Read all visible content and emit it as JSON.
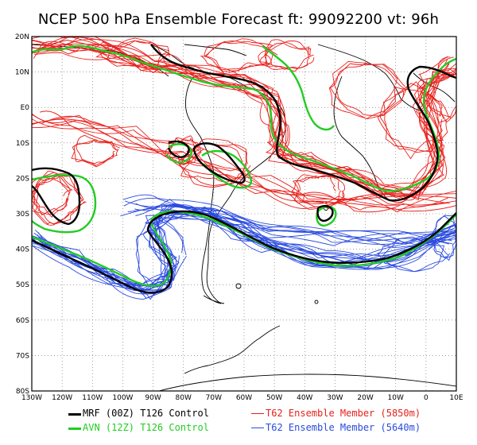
{
  "title": "NCEP 500 hPa Ensemble Forecast  ft: 99092200 vt: 96h",
  "lat_labels": [
    "20N",
    "10N",
    "E0",
    "10S",
    "20S",
    "30S",
    "40S",
    "50S",
    "60S",
    "70S",
    "80S"
  ],
  "lon_labels": [
    "130W",
    "120W",
    "110W",
    "100W",
    "90W",
    "80W",
    "70W",
    "60W",
    "50W",
    "40W",
    "30W",
    "20W",
    "10W",
    "0",
    "10E"
  ],
  "legend": [
    {
      "label": "MRF (00Z) T126 Control",
      "color": "#000000",
      "key": "mrf"
    },
    {
      "label": "AVN (12Z) T126 Control",
      "color": "#22cc22",
      "key": "avn"
    },
    {
      "label": "T62 Ensemble Member (5850m)",
      "color": "#e8201c",
      "key": "ens5850"
    },
    {
      "label": "T62 Ensemble Member (5640m)",
      "color": "#2a4ae0",
      "key": "ens5640"
    }
  ],
  "colors": {
    "mrf": "#000000",
    "avn": "#22cc22",
    "red": "#e8201c",
    "blue": "#2a4ae0",
    "coast": "#000000",
    "grid": "#555555"
  }
}
